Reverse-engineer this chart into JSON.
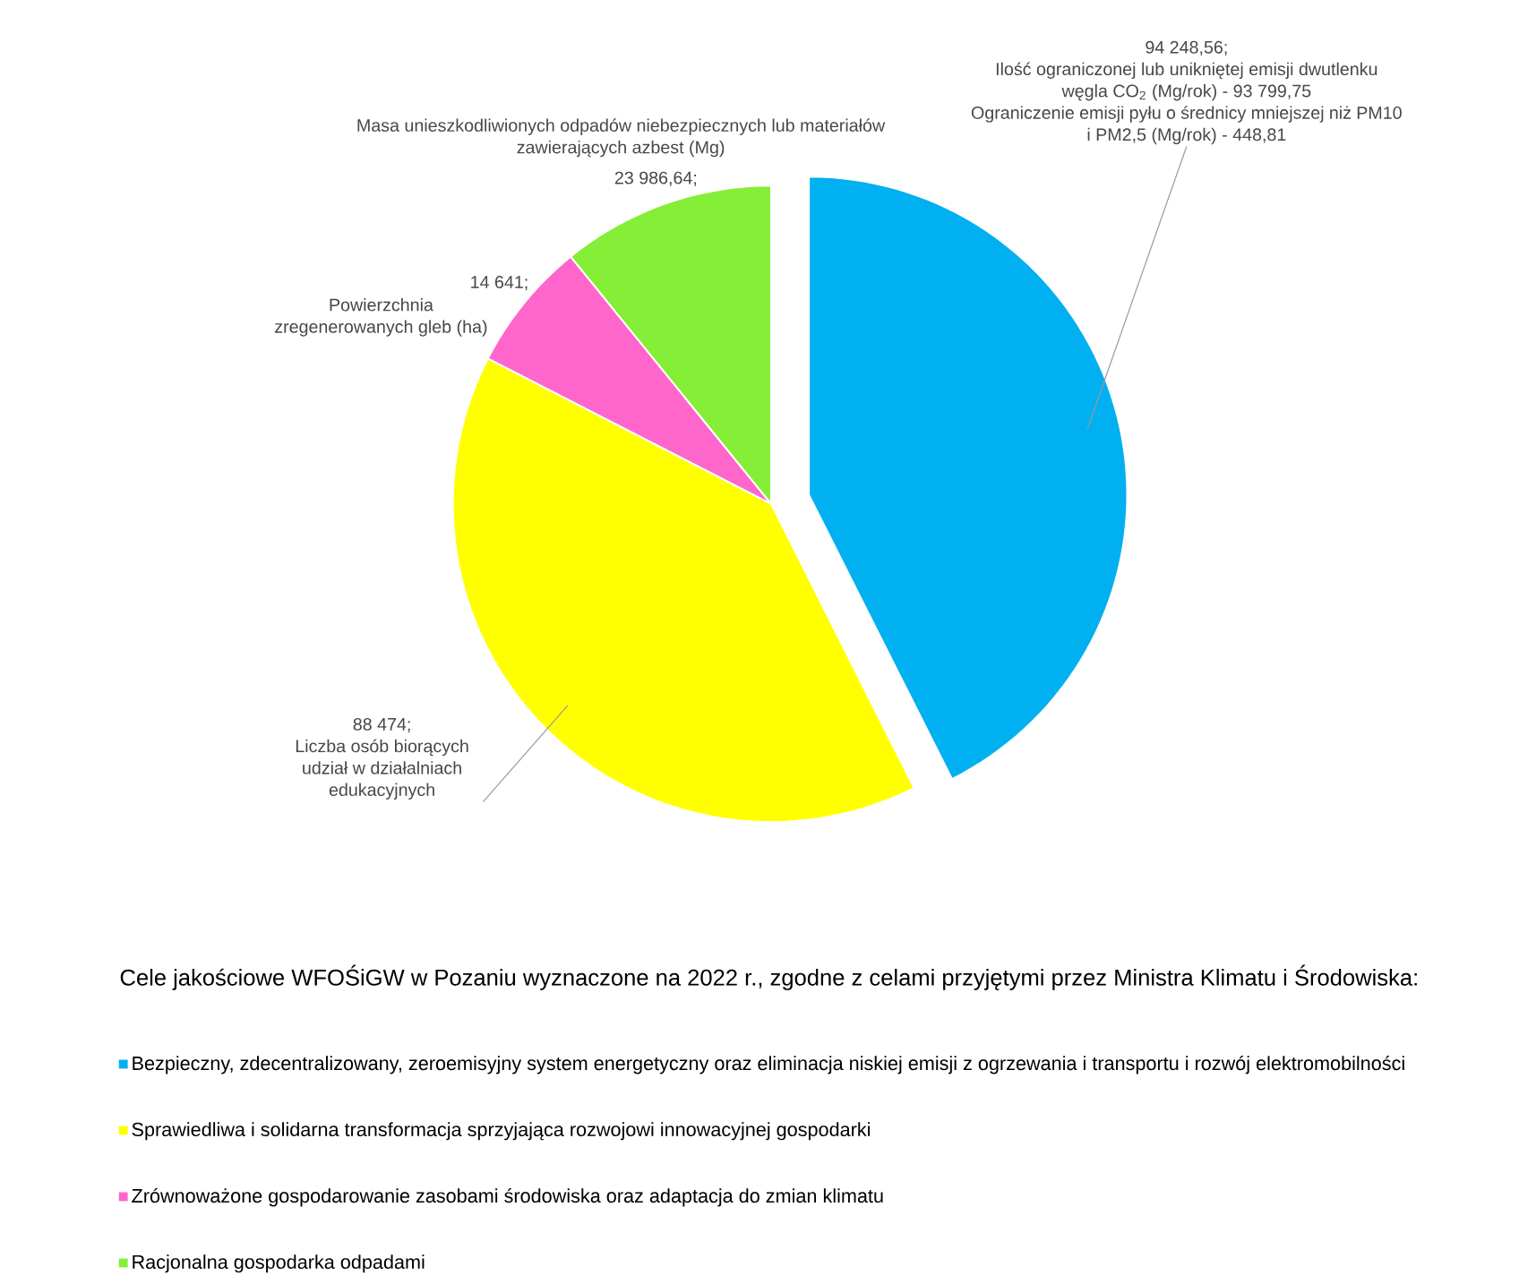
{
  "chart_data": {
    "type": "pie",
    "legend_title": "Cele jakościowe WFOŚiGW w Pozaniu wyznaczone na 2022 r., zgodne z celami przyjętymi przez Ministra Klimatu i Środowiska:",
    "categories": [
      "Bezpieczny, zdecentralizowany, zeroemisyjny system energetyczny oraz eliminacja niskiej emisji z ogrzewania i transportu i rozwój elektromobilności",
      "Sprawiedliwa i solidarna transformacja sprzyjająca rozwojowi innowacyjnej gospodarki",
      "Zrównoważone gospodarowanie zasobami środowiska oraz adaptacja do zmian klimatu",
      "Racjonalna gospodarka odpadami"
    ],
    "values": [
      94248.56,
      88474,
      14641,
      23986.64
    ],
    "colors": [
      "#00b0f0",
      "#ffff00",
      "#ff66cc",
      "#85ee37"
    ],
    "value_labels": [
      "94 248,56;",
      "88 474;",
      "14 641;",
      "23 986,64;"
    ],
    "annotations": [
      "Ilość ograniczonej lub unikniętej emisji dwutlenku węgla CO$_{2}$ (Mg/rok) - 93 799,75",
      "Ograniczenie emisji pyłu o średnicy mniejszej niż PM10 i PM2,5 (Mg/rok) - 448,81",
      "Liczba osób biorących udział w działalniach edukacyjnych",
      "Powierzchnia zregenerowanych gleb (ha)",
      "Masa unieszkodliwionych odpadów niebezpiecznych lub materiałów zawierających azbest (Mg)"
    ],
    "legend": "bottom"
  }
}
